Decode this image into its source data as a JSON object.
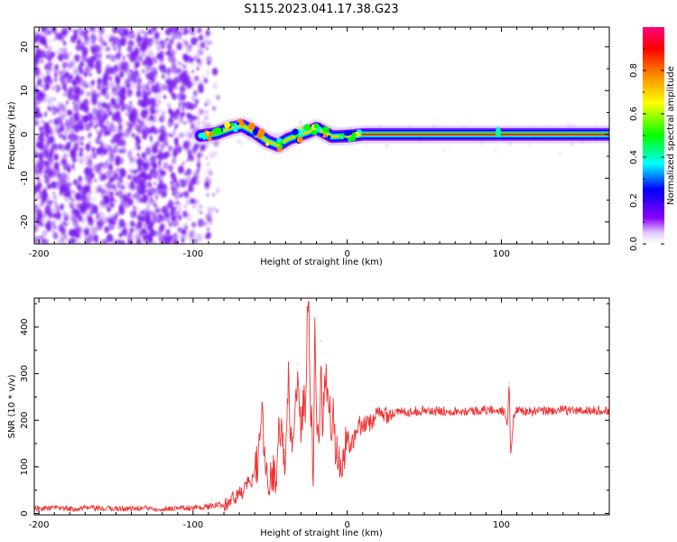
{
  "title": "S115.2023.041.17.38.G23",
  "chart_data": [
    {
      "type": "heatmap",
      "xlabel": "Height of straight line (km)",
      "ylabel": "Frequency (Hz)",
      "xlim": [
        -203,
        170
      ],
      "ylim": [
        -25,
        24.5
      ],
      "xticks": [
        -200,
        -100,
        0,
        100
      ],
      "yticks": [
        -20,
        -10,
        0,
        10,
        20
      ],
      "colorbar": {
        "label": "Normalized spectral amplitude",
        "range": [
          0,
          1
        ],
        "ticks": [
          0.0,
          0.2,
          0.4,
          0.6,
          0.8
        ],
        "tick_labels": [
          "0.0",
          "0.2",
          "0.4",
          "0.6",
          "0.8"
        ]
      },
      "noise_region_x": [
        -203,
        -92
      ],
      "trace": [
        {
          "x": -95,
          "y": -0.3
        },
        {
          "x": -85,
          "y": 0.2
        },
        {
          "x": -75,
          "y": 1.5
        },
        {
          "x": -68,
          "y": 2.0
        },
        {
          "x": -60,
          "y": 0.5
        },
        {
          "x": -52,
          "y": -1.5
        },
        {
          "x": -45,
          "y": -2.5
        },
        {
          "x": -38,
          "y": -1.0
        },
        {
          "x": -32,
          "y": -0.3
        },
        {
          "x": -25,
          "y": 0.6
        },
        {
          "x": -20,
          "y": 1.4
        },
        {
          "x": -15,
          "y": 0.5
        },
        {
          "x": -10,
          "y": -0.5
        },
        {
          "x": 0,
          "y": -0.4
        },
        {
          "x": 10,
          "y": 0.0
        },
        {
          "x": 50,
          "y": 0.0
        },
        {
          "x": 100,
          "y": 0.0
        },
        {
          "x": 170,
          "y": 0.0
        }
      ],
      "colors": {
        "noise": "#7a1cf0",
        "colorbar_stops": [
          "#ffffff",
          "#8800ff",
          "#0000ff",
          "#00ffff",
          "#00ff00",
          "#ffff00",
          "#ff8800",
          "#ff0000",
          "#ff0080"
        ]
      }
    },
    {
      "type": "line",
      "xlabel": "Height of straight line (km)",
      "ylabel": "SNR (10 * v/v)",
      "xlim": [
        -203,
        170
      ],
      "ylim": [
        -3,
        462
      ],
      "xticks": [
        -200,
        -100,
        0,
        100
      ],
      "yticks": [
        0,
        100,
        200,
        300,
        400
      ],
      "series": [
        {
          "color": "#ee3333",
          "x": [
            -203,
            -190,
            -180,
            -170,
            -160,
            -150,
            -140,
            -130,
            -120,
            -110,
            -100,
            -90,
            -80,
            -75,
            -70,
            -65,
            -60,
            -56,
            -55,
            -54,
            -52,
            -50,
            -46,
            -44,
            -42,
            -40,
            -38,
            -37,
            -36,
            -34,
            -32,
            -30,
            -28,
            -27,
            -26,
            -25,
            -24,
            -23,
            -22,
            -21,
            -20,
            -19,
            -18,
            -17,
            -16,
            -14,
            -12,
            -10,
            -9,
            -8,
            -6,
            -4,
            -2,
            0,
            2,
            5,
            8,
            10,
            13,
            16,
            20,
            25,
            30,
            35,
            40,
            45,
            50,
            55,
            60,
            70,
            80,
            90,
            100,
            102,
            104,
            105,
            106,
            108,
            110,
            120,
            130,
            140,
            150,
            160,
            170
          ],
          "y": [
            10,
            12,
            10,
            12,
            10,
            11,
            10,
            12,
            10,
            12,
            12,
            15,
            20,
            30,
            40,
            60,
            80,
            150,
            228,
            130,
            90,
            80,
            85,
            200,
            150,
            110,
            300,
            180,
            150,
            200,
            320,
            180,
            250,
            210,
            400,
            460,
            260,
            180,
            80,
            420,
            250,
            150,
            200,
            370,
            180,
            310,
            230,
            180,
            270,
            150,
            120,
            110,
            120,
            170,
            140,
            160,
            190,
            180,
            195,
            200,
            210,
            215,
            215,
            218,
            218,
            220,
            222,
            218,
            220,
            220,
            220,
            222,
            222,
            215,
            190,
            280,
            130,
            210,
            222,
            218,
            220,
            222,
            220,
            221,
            220
          ]
        }
      ]
    }
  ]
}
